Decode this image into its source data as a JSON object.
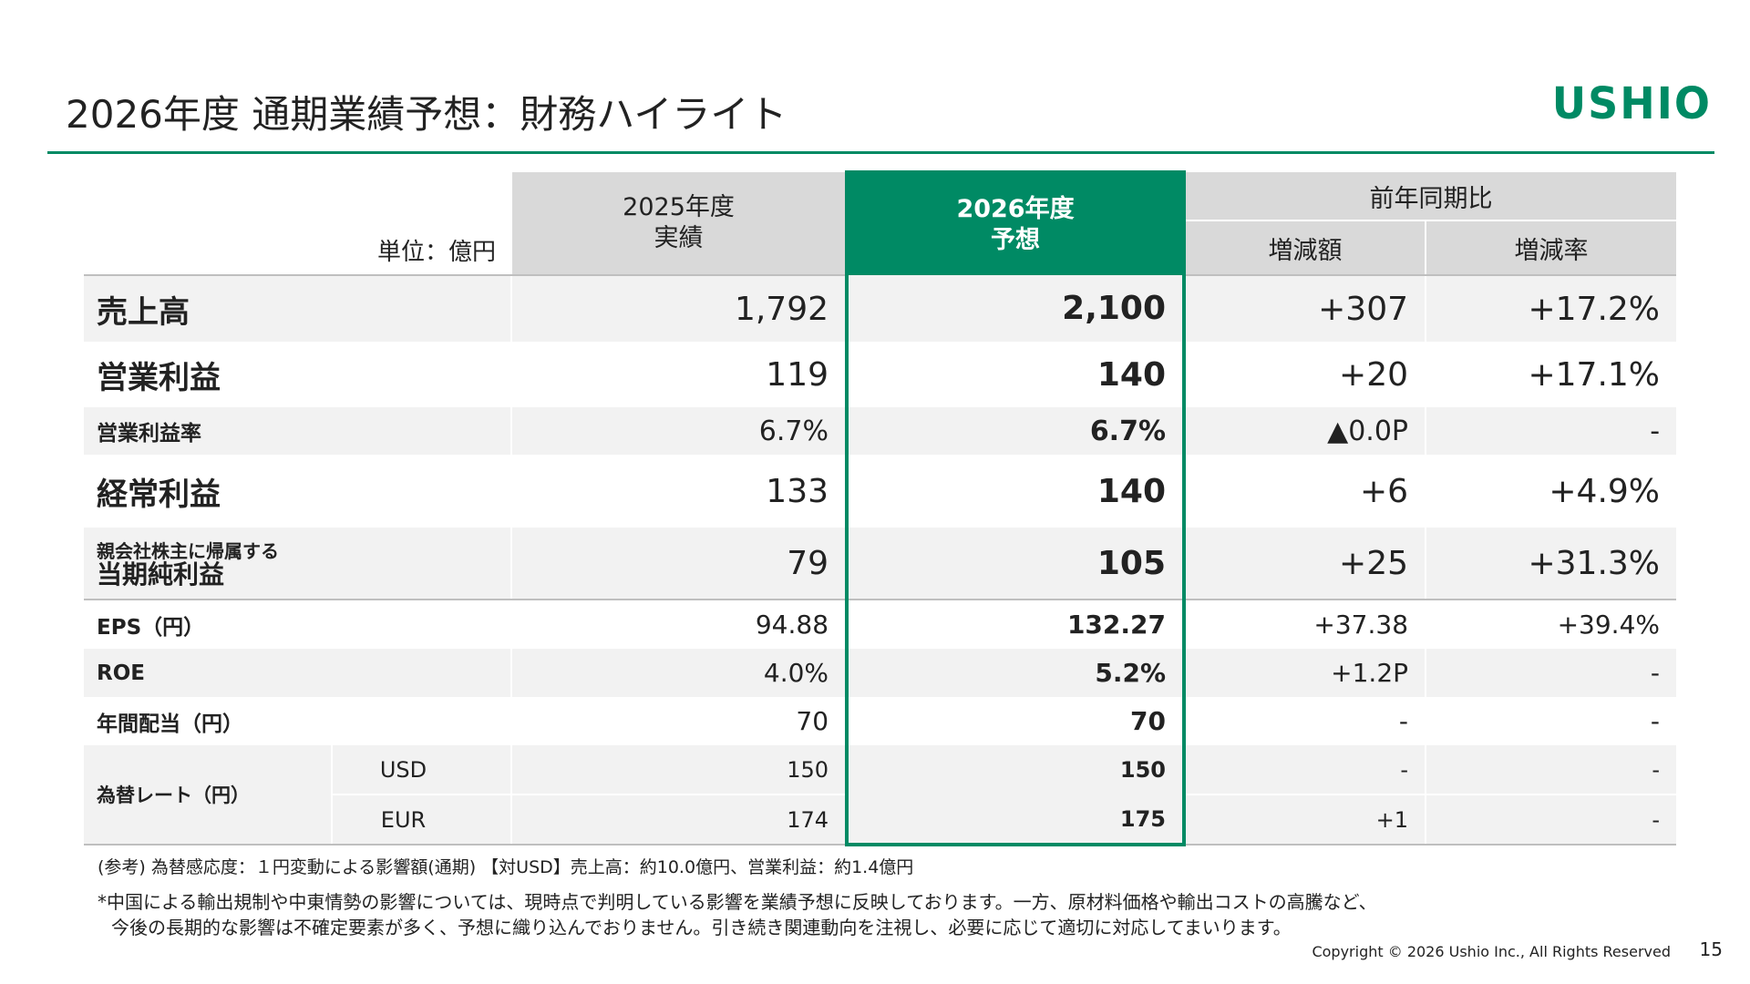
{
  "header": {
    "title": "2026年度 通期業績予想：財務ハイライト",
    "logo": "USHIO",
    "accent_color": "#008a64"
  },
  "table": {
    "unit": "単位：億円",
    "col_2025_line1": "2025年度",
    "col_2025_line2": "実績",
    "col_2026_line1": "2026年度",
    "col_2026_line2": "予想",
    "col_compare": "前年同期比",
    "col_change": "増減額",
    "col_rate": "増減率",
    "rows": {
      "sales": {
        "label": "売上高",
        "v2025": "1,792",
        "v2026": "2,100",
        "change": "+307",
        "rate": "+17.2%"
      },
      "op": {
        "label": "営業利益",
        "v2025": "119",
        "v2026": "140",
        "change": "+20",
        "rate": "+17.1%"
      },
      "opm": {
        "label": "営業利益率",
        "v2025": "6.7%",
        "v2026": "6.7%",
        "change": "▲0.0P",
        "rate": "-"
      },
      "ord": {
        "label": "経常利益",
        "v2025": "133",
        "v2026": "140",
        "change": "+6",
        "rate": "+4.9%"
      },
      "net": {
        "label_line1": "親会社株主に帰属する",
        "label_line2": "当期純利益",
        "v2025": "79",
        "v2026": "105",
        "change": "+25",
        "rate": "+31.3%"
      },
      "eps": {
        "label": "EPS（円）",
        "v2025": "94.88",
        "v2026": "132.27",
        "change": "+37.38",
        "rate": "+39.4%"
      },
      "roe": {
        "label": "ROE",
        "v2025": "4.0%",
        "v2026": "5.2%",
        "change": "+1.2P",
        "rate": "-"
      },
      "div": {
        "label": "年間配当（円）",
        "v2025": "70",
        "v2026": "70",
        "change": "-",
        "rate": "-"
      },
      "fx": {
        "label": "為替レート（円）",
        "usd": {
          "label": "USD",
          "v2025": "150",
          "v2026": "150",
          "change": "-",
          "rate": "-"
        },
        "eur": {
          "label": "EUR",
          "v2025": "174",
          "v2026": "175",
          "change": "+1",
          "rate": "-"
        }
      }
    }
  },
  "notes": {
    "ref": "(参考) 為替感応度：１円変動による影響額(通期) 【対USD】売上高：約10.0億円、営業利益：約1.4億円",
    "remark_line1": "*中国による輸出規制や中東情勢の影響については、現時点で判明している影響を業績予想に反映しております。一方、原材料価格や輸出コストの高騰など、",
    "remark_line2": "今後の長期的な影響は不確定要素が多く、予想に織り込んでおりません。引き続き関連動向を注視し、必要に応じて適切に対応してまいります。"
  },
  "footer": {
    "copyright": "Copyright © 2026 Ushio Inc., All Rights Reserved",
    "page": "15"
  }
}
